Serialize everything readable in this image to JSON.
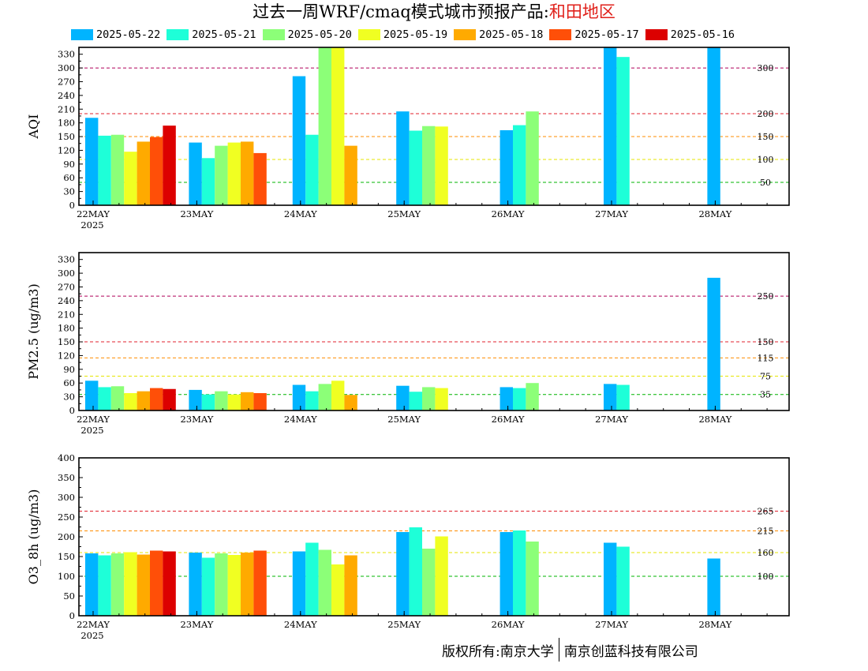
{
  "title": {
    "main": "过去一周WRF/cmaq模式城市预报产品:",
    "region": "和田地区",
    "region_color": "#e0201a"
  },
  "legend": [
    {
      "label": "2025-05-22",
      "color": "#00b4ff"
    },
    {
      "label": "2025-05-21",
      "color": "#1effd8"
    },
    {
      "label": "2025-05-20",
      "color": "#8cff78"
    },
    {
      "label": "2025-05-19",
      "color": "#f0ff22"
    },
    {
      "label": "2025-05-18",
      "color": "#ffaa00"
    },
    {
      "label": "2025-05-17",
      "color": "#ff4f08"
    },
    {
      "label": "2025-05-16",
      "color": "#dc0000"
    }
  ],
  "footer": {
    "left": "版权所有:南京大学",
    "right": "南京创蓝科技有限公司"
  },
  "chart_data": [
    {
      "type": "bar",
      "ylabel": "AQI",
      "ylim": [
        0,
        345
      ],
      "yticks": [
        0,
        30,
        60,
        90,
        120,
        150,
        180,
        210,
        240,
        270,
        300,
        330
      ],
      "categories": [
        "22MAY",
        "23MAY",
        "24MAY",
        "25MAY",
        "26MAY",
        "27MAY",
        "28MAY"
      ],
      "year_label": "2025",
      "ref_lines": [
        {
          "value": 300,
          "label": "300",
          "color": "#b0005a"
        },
        {
          "value": 200,
          "label": "200",
          "color": "#e0202c"
        },
        {
          "value": 150,
          "label": "150",
          "color": "#ff8c00"
        },
        {
          "value": 100,
          "label": "100",
          "color": "#e6e600"
        },
        {
          "value": 50,
          "label": "50",
          "color": "#00b400"
        }
      ],
      "series": [
        {
          "name": "2025-05-22",
          "values": [
            191,
            137,
            282,
            205,
            164,
            360,
            360
          ]
        },
        {
          "name": "2025-05-21",
          "values": [
            152,
            103,
            154,
            163,
            175,
            324,
            null
          ]
        },
        {
          "name": "2025-05-20",
          "values": [
            154,
            130,
            360,
            173,
            205,
            null,
            null
          ]
        },
        {
          "name": "2025-05-19",
          "values": [
            117,
            137,
            360,
            172,
            null,
            null,
            null
          ]
        },
        {
          "name": "2025-05-18",
          "values": [
            139,
            139,
            130,
            null,
            null,
            null,
            null
          ]
        },
        {
          "name": "2025-05-17",
          "values": [
            149,
            114,
            null,
            null,
            null,
            null,
            null
          ]
        },
        {
          "name": "2025-05-16",
          "values": [
            174,
            null,
            null,
            null,
            null,
            null,
            null
          ]
        }
      ]
    },
    {
      "type": "bar",
      "ylabel": "PM2.5 (ug/m3)",
      "ylim": [
        0,
        345
      ],
      "yticks": [
        0,
        30,
        60,
        90,
        120,
        150,
        180,
        210,
        240,
        270,
        300,
        330
      ],
      "categories": [
        "22MAY",
        "23MAY",
        "24MAY",
        "25MAY",
        "26MAY",
        "27MAY",
        "28MAY"
      ],
      "year_label": "2025",
      "ref_lines": [
        {
          "value": 250,
          "label": "250",
          "color": "#b0005a"
        },
        {
          "value": 150,
          "label": "150",
          "color": "#e0202c"
        },
        {
          "value": 115,
          "label": "115",
          "color": "#ff8c00"
        },
        {
          "value": 75,
          "label": "75",
          "color": "#e6e600"
        },
        {
          "value": 35,
          "label": "35",
          "color": "#00b400"
        }
      ],
      "series": [
        {
          "name": "2025-05-22",
          "values": [
            65,
            45,
            56,
            54,
            51,
            58,
            290
          ]
        },
        {
          "name": "2025-05-21",
          "values": [
            51,
            35,
            42,
            41,
            49,
            56,
            null
          ]
        },
        {
          "name": "2025-05-20",
          "values": [
            53,
            42,
            58,
            51,
            60,
            null,
            null
          ]
        },
        {
          "name": "2025-05-19",
          "values": [
            38,
            35,
            65,
            49,
            null,
            null,
            null
          ]
        },
        {
          "name": "2025-05-18",
          "values": [
            42,
            40,
            34,
            null,
            null,
            null,
            null
          ]
        },
        {
          "name": "2025-05-17",
          "values": [
            49,
            38,
            null,
            null,
            null,
            null,
            null
          ]
        },
        {
          "name": "2025-05-16",
          "values": [
            47,
            null,
            null,
            null,
            null,
            null,
            null
          ]
        }
      ]
    },
    {
      "type": "bar",
      "ylabel": "O3_8h (ug/m3)",
      "ylim": [
        0,
        400
      ],
      "yticks": [
        0,
        50,
        100,
        150,
        200,
        250,
        300,
        350,
        400
      ],
      "categories": [
        "22MAY",
        "23MAY",
        "24MAY",
        "25MAY",
        "26MAY",
        "27MAY",
        "28MAY"
      ],
      "year_label": "2025",
      "ref_lines": [
        {
          "value": 265,
          "label": "265",
          "color": "#e0202c"
        },
        {
          "value": 215,
          "label": "215",
          "color": "#ff8c00"
        },
        {
          "value": 160,
          "label": "160",
          "color": "#e6e600"
        },
        {
          "value": 100,
          "label": "100",
          "color": "#00b400"
        }
      ],
      "series": [
        {
          "name": "2025-05-22",
          "values": [
            158,
            160,
            163,
            212,
            212,
            185,
            145
          ]
        },
        {
          "name": "2025-05-21",
          "values": [
            153,
            147,
            185,
            224,
            216,
            175,
            null
          ]
        },
        {
          "name": "2025-05-20",
          "values": [
            158,
            158,
            167,
            170,
            188,
            null,
            null
          ]
        },
        {
          "name": "2025-05-19",
          "values": [
            161,
            154,
            130,
            201,
            null,
            null,
            null
          ]
        },
        {
          "name": "2025-05-18",
          "values": [
            155,
            160,
            153,
            null,
            null,
            null,
            null
          ]
        },
        {
          "name": "2025-05-17",
          "values": [
            165,
            165,
            null,
            null,
            null,
            null,
            null
          ]
        },
        {
          "name": "2025-05-16",
          "values": [
            163,
            null,
            null,
            null,
            null,
            null,
            null
          ]
        }
      ]
    }
  ]
}
